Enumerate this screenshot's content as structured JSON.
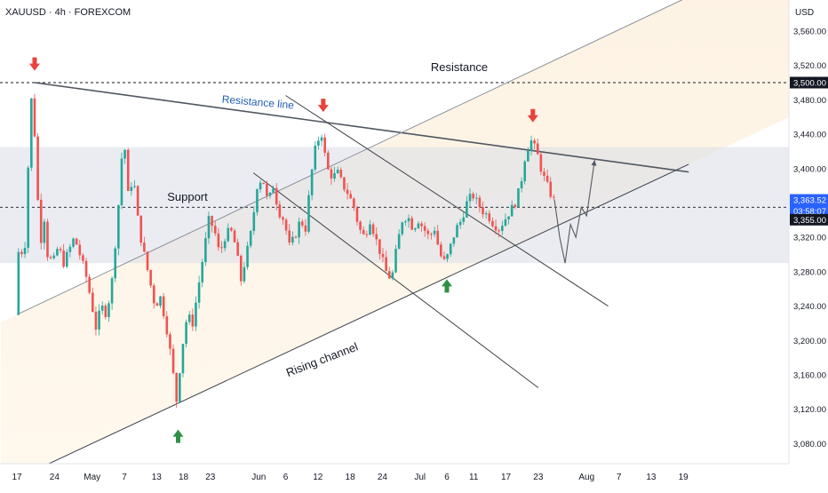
{
  "chart_data": {
    "type": "candlestick",
    "symbol_header": "XAUUSD · 4h · FOREXCOM",
    "unit_label": "USD",
    "ylim": [
      3040,
      3600
    ],
    "y_ticks": [
      "3,080.00",
      "3,120.00",
      "3,160.00",
      "3,200.00",
      "3,240.00",
      "3,280.00",
      "3,320.00",
      "3,400.00",
      "3,440.00",
      "3,480.00",
      "3,520.00",
      "3,560.00"
    ],
    "x_ticks": [
      {
        "label": "17",
        "day": 0
      },
      {
        "label": "24",
        "day": 7
      },
      {
        "label": "May",
        "day": 14
      },
      {
        "label": "7",
        "day": 20
      },
      {
        "label": "13",
        "day": 26
      },
      {
        "label": "18",
        "day": 31
      },
      {
        "label": "23",
        "day": 36
      },
      {
        "label": "Jun",
        "day": 45
      },
      {
        "label": "6",
        "day": 50
      },
      {
        "label": "12",
        "day": 56
      },
      {
        "label": "18",
        "day": 62
      },
      {
        "label": "24",
        "day": 68
      },
      {
        "label": "Jul",
        "day": 75
      },
      {
        "label": "6",
        "day": 80
      },
      {
        "label": "11",
        "day": 85
      },
      {
        "label": "17",
        "day": 91
      },
      {
        "label": "23",
        "day": 97
      },
      {
        "label": "Aug",
        "day": 106
      },
      {
        "label": "7",
        "day": 112
      },
      {
        "label": "13",
        "day": 118
      },
      {
        "label": "19",
        "day": 124
      }
    ],
    "price_marks": [
      {
        "label": "3,500.00",
        "value": 3500,
        "style": "dark"
      },
      {
        "label": "3,363.52",
        "value": 3363.52,
        "style": "blue"
      },
      {
        "label": "03:58:07",
        "value": 3350.5,
        "style": "blue"
      },
      {
        "label": "3,355.00",
        "value": 3340.5,
        "style": "dark"
      }
    ],
    "dotted_levels": [
      3500,
      3355
    ],
    "zones": [
      {
        "name": "support-resistance-band",
        "from": 3290,
        "to": 3425,
        "color": "#d9dde8"
      }
    ],
    "annotations": {
      "resistance": "Resistance",
      "resistance_line": "Resistance line",
      "support": "Support",
      "rising_channel": "Rising channel"
    },
    "ohlc_path": [
      {
        "d": 0,
        "p": 3230
      },
      {
        "d": 0.5,
        "p": 3300
      },
      {
        "d": 1,
        "p": 3315
      },
      {
        "d": 1.5,
        "p": 3285
      },
      {
        "d": 2,
        "p": 3330
      },
      {
        "d": 2.5,
        "p": 3420
      },
      {
        "d": 3,
        "p": 3480
      },
      {
        "d": 3.3,
        "p": 3500
      },
      {
        "d": 3.7,
        "p": 3420
      },
      {
        "d": 4,
        "p": 3385
      },
      {
        "d": 4.5,
        "p": 3330
      },
      {
        "d": 5,
        "p": 3310
      },
      {
        "d": 5.5,
        "p": 3350
      },
      {
        "d": 6,
        "p": 3300
      },
      {
        "d": 7,
        "p": 3290
      },
      {
        "d": 8,
        "p": 3310
      },
      {
        "d": 9,
        "p": 3290
      },
      {
        "d": 10,
        "p": 3305
      },
      {
        "d": 11,
        "p": 3320
      },
      {
        "d": 12,
        "p": 3300
      },
      {
        "d": 13,
        "p": 3280
      },
      {
        "d": 14,
        "p": 3250
      },
      {
        "d": 15,
        "p": 3215
      },
      {
        "d": 16,
        "p": 3240
      },
      {
        "d": 17,
        "p": 3230
      },
      {
        "d": 18,
        "p": 3270
      },
      {
        "d": 19,
        "p": 3340
      },
      {
        "d": 20,
        "p": 3430
      },
      {
        "d": 20.5,
        "p": 3420
      },
      {
        "d": 21,
        "p": 3370
      },
      {
        "d": 22,
        "p": 3390
      },
      {
        "d": 23,
        "p": 3330
      },
      {
        "d": 24,
        "p": 3300
      },
      {
        "d": 25,
        "p": 3270
      },
      {
        "d": 26,
        "p": 3240
      },
      {
        "d": 27,
        "p": 3250
      },
      {
        "d": 28,
        "p": 3220
      },
      {
        "d": 29,
        "p": 3180
      },
      {
        "d": 30,
        "p": 3130
      },
      {
        "d": 31,
        "p": 3190
      },
      {
        "d": 32,
        "p": 3230
      },
      {
        "d": 33,
        "p": 3220
      },
      {
        "d": 34,
        "p": 3260
      },
      {
        "d": 35,
        "p": 3300
      },
      {
        "d": 36,
        "p": 3340
      },
      {
        "d": 37,
        "p": 3330
      },
      {
        "d": 38,
        "p": 3300
      },
      {
        "d": 39,
        "p": 3320
      },
      {
        "d": 40,
        "p": 3330
      },
      {
        "d": 41,
        "p": 3310
      },
      {
        "d": 42,
        "p": 3270
      },
      {
        "d": 43,
        "p": 3300
      },
      {
        "d": 44,
        "p": 3330
      },
      {
        "d": 45,
        "p": 3380
      },
      {
        "d": 46,
        "p": 3390
      },
      {
        "d": 47,
        "p": 3360
      },
      {
        "d": 48,
        "p": 3380
      },
      {
        "d": 49,
        "p": 3350
      },
      {
        "d": 50,
        "p": 3340
      },
      {
        "d": 51,
        "p": 3310
      },
      {
        "d": 52,
        "p": 3320
      },
      {
        "d": 53,
        "p": 3340
      },
      {
        "d": 54,
        "p": 3330
      },
      {
        "d": 55,
        "p": 3390
      },
      {
        "d": 56,
        "p": 3430
      },
      {
        "d": 57,
        "p": 3440
      },
      {
        "d": 58,
        "p": 3400
      },
      {
        "d": 59,
        "p": 3390
      },
      {
        "d": 60,
        "p": 3395
      },
      {
        "d": 61,
        "p": 3380
      },
      {
        "d": 62,
        "p": 3370
      },
      {
        "d": 63,
        "p": 3355
      },
      {
        "d": 64,
        "p": 3330
      },
      {
        "d": 65,
        "p": 3320
      },
      {
        "d": 66,
        "p": 3340
      },
      {
        "d": 67,
        "p": 3320
      },
      {
        "d": 68,
        "p": 3300
      },
      {
        "d": 69,
        "p": 3280
      },
      {
        "d": 70,
        "p": 3270
      },
      {
        "d": 71,
        "p": 3310
      },
      {
        "d": 72,
        "p": 3340
      },
      {
        "d": 73,
        "p": 3345
      },
      {
        "d": 74,
        "p": 3330
      },
      {
        "d": 75,
        "p": 3340
      },
      {
        "d": 76,
        "p": 3330
      },
      {
        "d": 77,
        "p": 3320
      },
      {
        "d": 78,
        "p": 3330
      },
      {
        "d": 79,
        "p": 3300
      },
      {
        "d": 80,
        "p": 3290
      },
      {
        "d": 81,
        "p": 3310
      },
      {
        "d": 82,
        "p": 3330
      },
      {
        "d": 83,
        "p": 3340
      },
      {
        "d": 84,
        "p": 3360
      },
      {
        "d": 85,
        "p": 3370
      },
      {
        "d": 86,
        "p": 3360
      },
      {
        "d": 87,
        "p": 3350
      },
      {
        "d": 88,
        "p": 3345
      },
      {
        "d": 89,
        "p": 3335
      },
      {
        "d": 90,
        "p": 3330
      },
      {
        "d": 91,
        "p": 3340
      },
      {
        "d": 92,
        "p": 3350
      },
      {
        "d": 93,
        "p": 3360
      },
      {
        "d": 94,
        "p": 3380
      },
      {
        "d": 95,
        "p": 3420
      },
      {
        "d": 96,
        "p": 3432
      },
      {
        "d": 97,
        "p": 3420
      },
      {
        "d": 98,
        "p": 3395
      },
      {
        "d": 99,
        "p": 3380
      },
      {
        "d": 100,
        "p": 3364
      }
    ],
    "projection_path": [
      {
        "d": 100,
        "p": 3364
      },
      {
        "d": 101,
        "p": 3320
      },
      {
        "d": 102,
        "p": 3290
      },
      {
        "d": 103,
        "p": 3335
      },
      {
        "d": 104,
        "p": 3320
      },
      {
        "d": 105,
        "p": 3355
      },
      {
        "d": 106,
        "p": 3345
      },
      {
        "d": 107.5,
        "p": 3410
      }
    ],
    "trend_lines": [
      {
        "name": "resistance-line",
        "from": {
          "d": 3.3,
          "p": 3500
        },
        "to": {
          "d": 125,
          "p": 3396
        },
        "color": "#505660",
        "width": 1.6
      },
      {
        "name": "rising-channel-upper",
        "from": {
          "d": 0,
          "p": 3230
        },
        "to": {
          "d": 125,
          "p": 3600
        },
        "color": "#8a9099",
        "width": 1
      },
      {
        "name": "rising-channel-lower",
        "from": {
          "d": 2,
          "p": 3045
        },
        "to": {
          "d": 125,
          "p": 3405
        },
        "color": "#3d4148",
        "width": 1
      },
      {
        "name": "descending-line-upper",
        "from": {
          "d": 50,
          "p": 3485
        },
        "to": {
          "d": 110,
          "p": 3240
        },
        "color": "#3d4148",
        "width": 1
      },
      {
        "name": "descending-line-lower",
        "from": {
          "d": 44,
          "p": 3395
        },
        "to": {
          "d": 97,
          "p": 3145
        },
        "color": "#3d4148",
        "width": 1
      }
    ],
    "arrows": [
      {
        "dir": "down",
        "d": 3.3,
        "p": 3520,
        "color": "#e8433c"
      },
      {
        "dir": "down",
        "d": 57,
        "p": 3472,
        "color": "#e8433c"
      },
      {
        "dir": "down",
        "d": 96,
        "p": 3460,
        "color": "#e8433c"
      },
      {
        "dir": "up",
        "d": 30,
        "p": 3090,
        "color": "#2f8f46"
      },
      {
        "dir": "up",
        "d": 80,
        "p": 3265,
        "color": "#2f8f46"
      }
    ],
    "colors": {
      "up_candle": "#26a69a",
      "down_candle": "#ef5350",
      "warm_fill_top": "#fdf3e3",
      "warm_fill_bottom": "#fff6e6",
      "band": "#d9dde8",
      "label_blue": "#1f5fb5"
    }
  }
}
